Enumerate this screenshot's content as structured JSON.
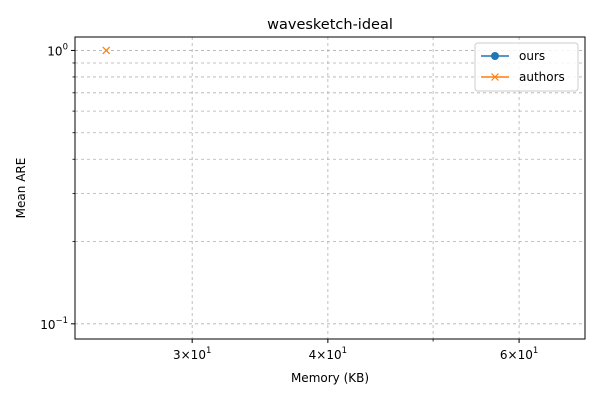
{
  "chart_data": {
    "type": "line",
    "title": "wavesketch-ideal",
    "xlabel": "Memory (KB)",
    "ylabel": "Mean ARE",
    "x_scale": "log",
    "y_scale": "log",
    "xlim": [
      23.4,
      69
    ],
    "ylim": [
      0.088,
      1.12
    ],
    "x_ticks": [
      {
        "value": 30,
        "label_base": "3",
        "label_exp": "1"
      },
      {
        "value": 40,
        "label_base": "4",
        "label_exp": "1"
      },
      {
        "value": 60,
        "label_base": "6",
        "label_exp": "1"
      }
    ],
    "x_minor_ticks": [
      50
    ],
    "y_ticks": [
      {
        "value": 0.1,
        "label_base": "10",
        "label_exp": "−1"
      },
      {
        "value": 1,
        "label_base": "10",
        "label_exp": "0"
      }
    ],
    "y_minor_ticks": [
      0.2,
      0.3,
      0.4,
      0.5,
      0.6,
      0.7,
      0.8,
      0.9
    ],
    "grid": true,
    "legend_position": "top-right",
    "series": [
      {
        "name": "ours",
        "color": "#1f77b4",
        "marker": "circle",
        "points": []
      },
      {
        "name": "authors",
        "color": "#ff7f0e",
        "marker": "x",
        "points": [
          {
            "x": 25,
            "y": 1.0
          }
        ]
      }
    ]
  }
}
